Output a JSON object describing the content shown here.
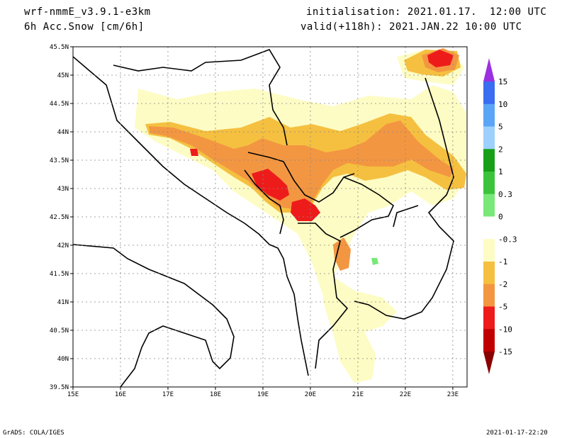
{
  "header": {
    "model": "wrf-nmmE_v3.9.1-e3km",
    "field": "6h Acc.Snow [cm/6h]",
    "init": "initialisation: 2021.01.17.  12:00 UTC",
    "valid": "valid(+118h): 2021.JAN.22 10:00 UTC"
  },
  "footer": {
    "credit": "GrADS: COLA/IGES",
    "timestamp": "2021-01-17-22:20"
  },
  "map": {
    "lon_min": 15,
    "lon_max": 23.3,
    "lat_min": 39.5,
    "lat_max": 45.5,
    "lat_ticks": [
      {
        "value": 45.5,
        "label": "45.5N"
      },
      {
        "value": 45,
        "label": "45N"
      },
      {
        "value": 44.5,
        "label": "44.5N"
      },
      {
        "value": 44,
        "label": "44N"
      },
      {
        "value": 43.5,
        "label": "43.5N"
      },
      {
        "value": 43,
        "label": "43N"
      },
      {
        "value": 42.5,
        "label": "42.5N"
      },
      {
        "value": 42,
        "label": "42N"
      },
      {
        "value": 41.5,
        "label": "41.5N"
      },
      {
        "value": 41,
        "label": "41N"
      },
      {
        "value": 40.5,
        "label": "40.5N"
      },
      {
        "value": 40,
        "label": "40N"
      },
      {
        "value": 39.5,
        "label": "39.5N"
      }
    ],
    "lon_ticks": [
      {
        "value": 15,
        "label": "15E"
      },
      {
        "value": 16,
        "label": "16E"
      },
      {
        "value": 17,
        "label": "17E"
      },
      {
        "value": 18,
        "label": "18E"
      },
      {
        "value": 19,
        "label": "19E"
      },
      {
        "value": 20,
        "label": "20E"
      },
      {
        "value": 21,
        "label": "21E"
      },
      {
        "value": 22,
        "label": "22E"
      },
      {
        "value": 23,
        "label": "23E"
      }
    ]
  },
  "colors": {
    "band_light": "#fdfcc4",
    "band_gold": "#f5c040",
    "band_orange": "#f39641",
    "band_red": "#ee1b1b",
    "band_darkred": "#c00000",
    "band_green": "#78e878"
  },
  "legend": {
    "labels": [
      "15",
      "10",
      "5",
      "2",
      "1",
      "0.3",
      "0",
      "-0.3",
      "-1",
      "-2",
      "-5",
      "-10",
      "-15"
    ],
    "swatches": [
      "#4830e8",
      "#3a6df0",
      "#5aa5f5",
      "#9dd0fb",
      "#17a017",
      "#3bc43b",
      "#78e878",
      "#ffffff",
      "#fdfcc4",
      "#f5c040",
      "#f39641",
      "#ee1b1b",
      "#c00000"
    ],
    "top_tip_color": "#9b30e0",
    "bottom_tip_color": "#8b0000"
  }
}
